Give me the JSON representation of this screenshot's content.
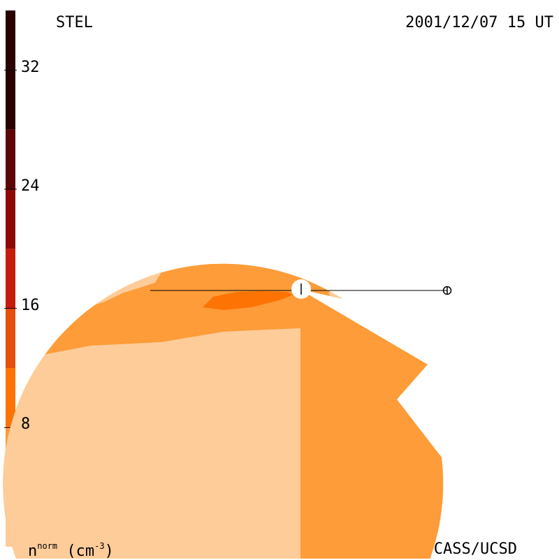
{
  "header": {
    "instrument": "STEL",
    "datetime": "2001/12/07 15 UT"
  },
  "footer": {
    "credit": "CASS/UCSD",
    "unit_main": "n",
    "unit_sup": "norm",
    "unit_tail": " (cm",
    "unit_exp": "-3",
    "unit_close": ")"
  },
  "colorbar": {
    "ticks": [
      "32",
      "24",
      "16",
      "8"
    ],
    "tick_values": [
      32,
      24,
      16,
      8
    ],
    "range": [
      0,
      36
    ],
    "colors": [
      "#fdcc99",
      "#fd9c38",
      "#fd7304",
      "#e54e0e",
      "#c51c0c",
      "#8e0808",
      "#5e0404",
      "#2a0000"
    ],
    "bands": [
      0,
      4,
      8,
      12,
      16,
      20,
      24,
      28,
      36
    ]
  },
  "map": {
    "level_colors": {
      "light": "#fdcc99",
      "base": "#fd9c38",
      "mid": "#fd7304",
      "dark": "#c51c0c"
    },
    "markers": [
      "sun-marker",
      "earth-marker"
    ]
  }
}
